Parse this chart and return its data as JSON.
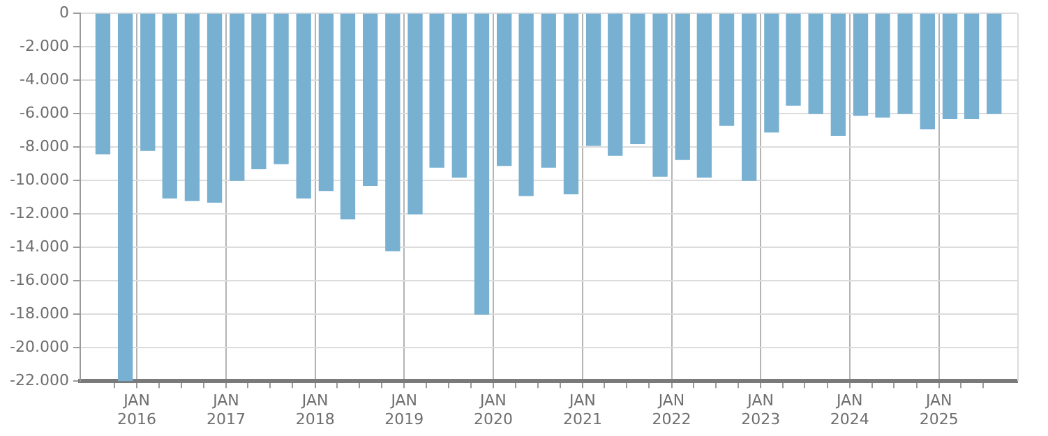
{
  "chart_data": {
    "type": "bar",
    "color": "#78b0d2",
    "x": [
      "2015-08-15",
      "2015-11-15",
      "2016-02-15",
      "2016-05-15",
      "2016-08-15",
      "2016-11-15",
      "2017-02-15",
      "2017-05-15",
      "2017-08-15",
      "2017-11-15",
      "2018-02-15",
      "2018-05-15",
      "2018-08-15",
      "2018-11-15",
      "2019-02-15",
      "2019-05-15",
      "2019-08-15",
      "2019-11-15",
      "2020-02-15",
      "2020-05-15",
      "2020-08-15",
      "2020-11-15",
      "2021-02-15",
      "2021-05-15",
      "2021-08-15",
      "2021-11-15",
      "2022-02-15",
      "2022-05-15",
      "2022-08-15",
      "2022-11-15",
      "2023-02-15",
      "2023-05-15",
      "2023-08-15",
      "2023-11-15",
      "2024-02-15",
      "2024-05-15",
      "2024-08-15",
      "2024-11-15",
      "2025-02-15",
      "2025-05-15",
      "2025-08-15"
    ],
    "values": [
      -8400,
      -22000,
      -8200,
      -11050,
      -11200,
      -11300,
      -10000,
      -9300,
      -9000,
      -11050,
      -10600,
      -12300,
      -10300,
      -14200,
      -12000,
      -9200,
      -9800,
      -18000,
      -9100,
      -10900,
      -9200,
      -10800,
      -7900,
      -8500,
      -7800,
      -9750,
      -8750,
      -9800,
      -6700,
      -10000,
      -7100,
      -5500,
      -6000,
      -7300,
      -6100,
      -6200,
      -6000,
      -6900,
      -6300,
      -6300,
      -6000
    ],
    "xlim": [
      "2015-07-01",
      "2025-10-01"
    ],
    "xticks": [
      {
        "value": "2015-10-01",
        "label": null
      },
      {
        "value": "2016-01-01",
        "label": "JAN 2016"
      },
      {
        "value": "2016-04-01",
        "label": null
      },
      {
        "value": "2016-07-01",
        "label": null
      },
      {
        "value": "2016-10-01",
        "label": null
      },
      {
        "value": "2017-01-01",
        "label": "JAN 2017"
      },
      {
        "value": "2017-04-01",
        "label": null
      },
      {
        "value": "2017-07-01",
        "label": null
      },
      {
        "value": "2017-10-01",
        "label": null
      },
      {
        "value": "2018-01-01",
        "label": "JAN 2018"
      },
      {
        "value": "2018-04-01",
        "label": null
      },
      {
        "value": "2018-07-01",
        "label": null
      },
      {
        "value": "2018-10-01",
        "label": null
      },
      {
        "value": "2019-01-01",
        "label": "JAN 2019"
      },
      {
        "value": "2019-04-01",
        "label": null
      },
      {
        "value": "2019-07-01",
        "label": null
      },
      {
        "value": "2019-10-01",
        "label": null
      },
      {
        "value": "2020-01-01",
        "label": "JAN 2020"
      },
      {
        "value": "2020-04-01",
        "label": null
      },
      {
        "value": "2020-07-01",
        "label": null
      },
      {
        "value": "2020-10-01",
        "label": null
      },
      {
        "value": "2021-01-01",
        "label": "JAN 2021"
      },
      {
        "value": "2021-04-01",
        "label": null
      },
      {
        "value": "2021-07-01",
        "label": null
      },
      {
        "value": "2021-10-01",
        "label": null
      },
      {
        "value": "2022-01-01",
        "label": "JAN 2022"
      },
      {
        "value": "2022-04-01",
        "label": null
      },
      {
        "value": "2022-07-01",
        "label": null
      },
      {
        "value": "2022-10-01",
        "label": null
      },
      {
        "value": "2023-01-01",
        "label": "JAN 2023"
      },
      {
        "value": "2023-04-01",
        "label": null
      },
      {
        "value": "2023-07-01",
        "label": null
      },
      {
        "value": "2023-10-01",
        "label": null
      },
      {
        "value": "2024-01-01",
        "label": "JAN 2024"
      },
      {
        "value": "2024-04-01",
        "label": null
      },
      {
        "value": "2024-07-01",
        "label": null
      },
      {
        "value": "2024-10-01",
        "label": null
      },
      {
        "value": "2025-01-01",
        "label": "JAN 2025"
      },
      {
        "value": "2025-04-01",
        "label": null
      },
      {
        "value": "2025-07-01",
        "label": null
      }
    ],
    "ylim": [
      -22000,
      0
    ],
    "yticks": [
      {
        "value": 0,
        "label": "0"
      },
      {
        "value": -2000,
        "label": "-2.000"
      },
      {
        "value": -4000,
        "label": "-4.000"
      },
      {
        "value": -6000,
        "label": "-6.000"
      },
      {
        "value": -8000,
        "label": "-8.000"
      },
      {
        "value": -10000,
        "label": "-10.000"
      },
      {
        "value": -12000,
        "label": "-12.000"
      },
      {
        "value": -14000,
        "label": "-14.000"
      },
      {
        "value": -16000,
        "label": "-16.000"
      },
      {
        "value": -18000,
        "label": "-18.000"
      },
      {
        "value": -20000,
        "label": "-20.000"
      },
      {
        "value": -22000,
        "label": "-22.000"
      }
    ],
    "grid": true,
    "legend": false
  }
}
